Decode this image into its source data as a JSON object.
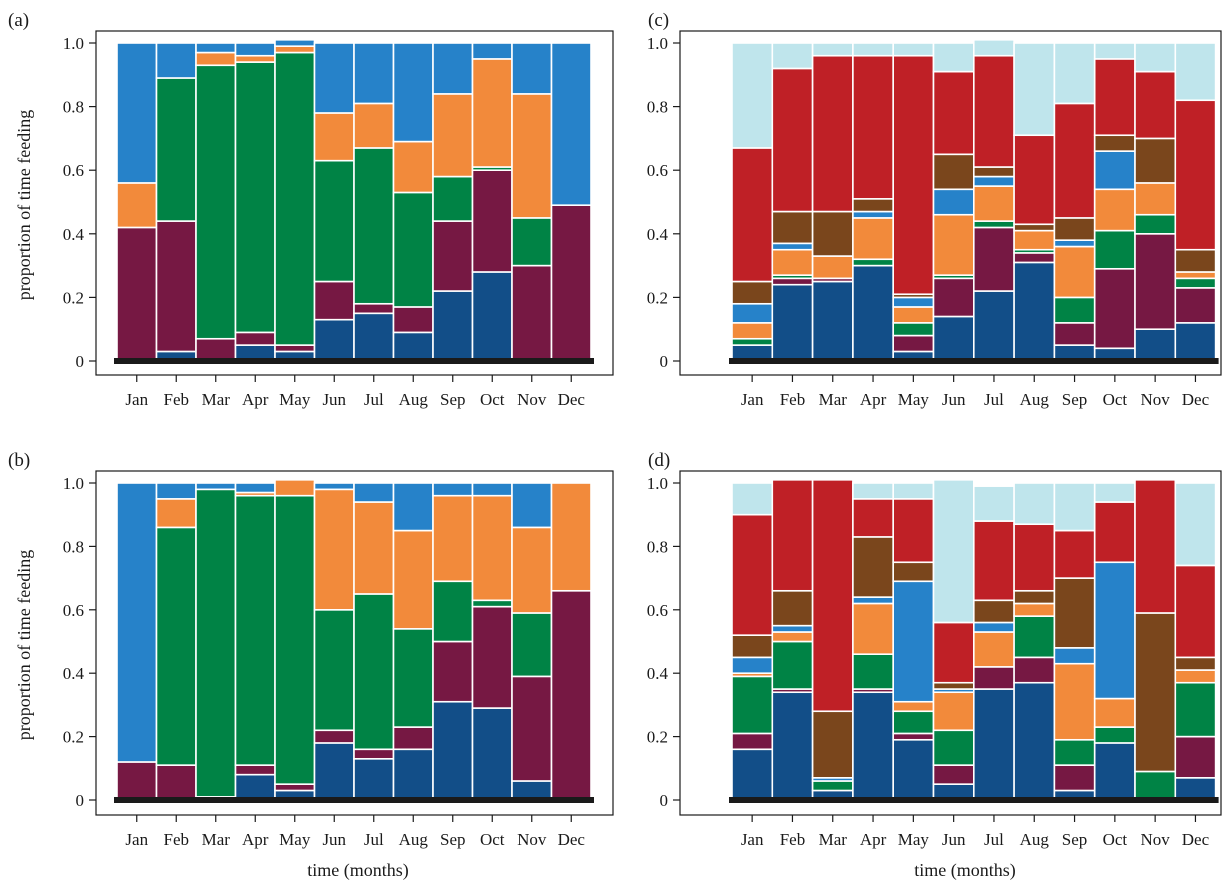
{
  "figure": {
    "ylabel": "proportion of time feeding",
    "xlabel": "time (months)",
    "months": [
      "Jan",
      "Feb",
      "Mar",
      "Apr",
      "May",
      "Jun",
      "Jul",
      "Aug",
      "Sep",
      "Oct",
      "Nov",
      "Dec"
    ],
    "ytick_labels": [
      "0",
      "0.2",
      "0.4",
      "0.6",
      "0.8",
      "1.0"
    ],
    "colors": {
      "navy": "#124e88",
      "maroon": "#761843",
      "green": "#008345",
      "orange": "#f28a3b",
      "blue": "#2682c9",
      "brown": "#7a461c",
      "red": "#bf2026",
      "lightblue": "#bfe5ec"
    }
  },
  "chart_data": [
    {
      "panel": "(a)",
      "type": "bar",
      "stacked": true,
      "categories": [
        "Jan",
        "Feb",
        "Mar",
        "Apr",
        "May",
        "Jun",
        "Jul",
        "Aug",
        "Sep",
        "Oct",
        "Nov",
        "Dec"
      ],
      "ylim": [
        0,
        1.0
      ],
      "ylabel": "proportion of time feeding",
      "xlabel": "",
      "series": [
        {
          "color": "navy",
          "values": [
            0,
            0.03,
            0,
            0.05,
            0.03,
            0.13,
            0.15,
            0.09,
            0.22,
            0.28,
            0,
            0
          ]
        },
        {
          "color": "maroon",
          "values": [
            0.42,
            0.41,
            0.07,
            0.04,
            0.02,
            0.12,
            0.03,
            0.08,
            0.22,
            0.32,
            0.3,
            0.49
          ]
        },
        {
          "color": "green",
          "values": [
            0,
            0.45,
            0.86,
            0.85,
            0.92,
            0.38,
            0.49,
            0.36,
            0.14,
            0.01,
            0.15,
            0
          ]
        },
        {
          "color": "orange",
          "values": [
            0.14,
            0,
            0.04,
            0.02,
            0.02,
            0.15,
            0.14,
            0.16,
            0.26,
            0.34,
            0.39,
            0
          ]
        },
        {
          "color": "blue",
          "values": [
            0.44,
            0.11,
            0.03,
            0.04,
            0.02,
            0.22,
            0.19,
            0.31,
            0.16,
            0.05,
            0.16,
            0.51
          ]
        }
      ]
    },
    {
      "panel": "(b)",
      "type": "bar",
      "stacked": true,
      "categories": [
        "Jan",
        "Feb",
        "Mar",
        "Apr",
        "May",
        "Jun",
        "Jul",
        "Aug",
        "Sep",
        "Oct",
        "Nov",
        "Dec"
      ],
      "ylim": [
        0,
        1.0
      ],
      "ylabel": "proportion of time feeding",
      "xlabel": "time (months)",
      "series": [
        {
          "color": "navy",
          "values": [
            0,
            0,
            0,
            0.08,
            0.03,
            0.18,
            0.13,
            0.16,
            0.31,
            0.29,
            0.06,
            0
          ]
        },
        {
          "color": "maroon",
          "values": [
            0.12,
            0.11,
            0.01,
            0.03,
            0.02,
            0.04,
            0.03,
            0.07,
            0.19,
            0.32,
            0.33,
            0.66
          ]
        },
        {
          "color": "green",
          "values": [
            0,
            0.75,
            0.97,
            0.85,
            0.91,
            0.38,
            0.49,
            0.31,
            0.19,
            0.02,
            0.2,
            0
          ]
        },
        {
          "color": "orange",
          "values": [
            0,
            0.09,
            0,
            0.01,
            0.05,
            0.38,
            0.29,
            0.31,
            0.27,
            0.33,
            0.27,
            0.34
          ]
        },
        {
          "color": "blue",
          "values": [
            0.88,
            0.05,
            0.02,
            0.03,
            0,
            0.02,
            0.06,
            0.15,
            0.04,
            0.04,
            0.14,
            0
          ]
        }
      ]
    },
    {
      "panel": "(c)",
      "type": "bar",
      "stacked": true,
      "categories": [
        "Jan",
        "Feb",
        "Mar",
        "Apr",
        "May",
        "Jun",
        "Jul",
        "Aug",
        "Sep",
        "Oct",
        "Nov",
        "Dec"
      ],
      "ylim": [
        0,
        1.0
      ],
      "ylabel": "",
      "xlabel": "",
      "series": [
        {
          "color": "navy",
          "values": [
            0.05,
            0.24,
            0.25,
            0.3,
            0.03,
            0.14,
            0.22,
            0.31,
            0.05,
            0.04,
            0.1,
            0.12
          ]
        },
        {
          "color": "maroon",
          "values": [
            0,
            0.02,
            0.01,
            0,
            0.05,
            0.12,
            0.2,
            0.03,
            0.07,
            0.25,
            0.3,
            0.11
          ]
        },
        {
          "color": "green",
          "values": [
            0.02,
            0.01,
            0,
            0.02,
            0.04,
            0.01,
            0.02,
            0.01,
            0.08,
            0.12,
            0.06,
            0.03
          ]
        },
        {
          "color": "orange",
          "values": [
            0.05,
            0.08,
            0.07,
            0.13,
            0.05,
            0.19,
            0.11,
            0.06,
            0.16,
            0.13,
            0.1,
            0.02
          ]
        },
        {
          "color": "blue",
          "values": [
            0.06,
            0.02,
            0,
            0.02,
            0.03,
            0.08,
            0.03,
            0,
            0.02,
            0.12,
            0,
            0
          ]
        },
        {
          "color": "brown",
          "values": [
            0.07,
            0.1,
            0.14,
            0.04,
            0.01,
            0.11,
            0.03,
            0.02,
            0.07,
            0.05,
            0.14,
            0.07
          ]
        },
        {
          "color": "red",
          "values": [
            0.42,
            0.45,
            0.49,
            0.45,
            0.75,
            0.26,
            0.35,
            0.28,
            0.36,
            0.24,
            0.21,
            0.47
          ]
        },
        {
          "color": "lightblue",
          "values": [
            0.33,
            0.08,
            0.04,
            0.04,
            0.04,
            0.09,
            0.05,
            0.29,
            0.19,
            0.05,
            0.09,
            0.18
          ]
        }
      ]
    },
    {
      "panel": "(d)",
      "type": "bar",
      "stacked": true,
      "categories": [
        "Jan",
        "Feb",
        "Mar",
        "Apr",
        "May",
        "Jun",
        "Jul",
        "Aug",
        "Sep",
        "Oct",
        "Nov",
        "Dec"
      ],
      "ylim": [
        0,
        1.0
      ],
      "ylabel": "",
      "xlabel": "time (months)",
      "series": [
        {
          "color": "navy",
          "values": [
            0.16,
            0.34,
            0.03,
            0.34,
            0.19,
            0.05,
            0.35,
            0.37,
            0.03,
            0.18,
            0,
            0.07
          ]
        },
        {
          "color": "maroon",
          "values": [
            0.05,
            0.01,
            0,
            0.01,
            0.02,
            0.06,
            0.07,
            0.08,
            0.08,
            0,
            0,
            0.13
          ]
        },
        {
          "color": "green",
          "values": [
            0.18,
            0.15,
            0.03,
            0.11,
            0.07,
            0.11,
            0,
            0.13,
            0.08,
            0.05,
            0.09,
            0.17
          ]
        },
        {
          "color": "orange",
          "values": [
            0.01,
            0.03,
            0,
            0.16,
            0.03,
            0.12,
            0.11,
            0.04,
            0.24,
            0.09,
            0,
            0.04
          ]
        },
        {
          "color": "blue",
          "values": [
            0.05,
            0.02,
            0.01,
            0.02,
            0.38,
            0.01,
            0.03,
            0,
            0.05,
            0.43,
            0,
            0
          ]
        },
        {
          "color": "brown",
          "values": [
            0.07,
            0.11,
            0.21,
            0.19,
            0.06,
            0.02,
            0.07,
            0.04,
            0.22,
            0,
            0.5,
            0.04
          ]
        },
        {
          "color": "red",
          "values": [
            0.38,
            0.35,
            0.73,
            0.12,
            0.2,
            0.19,
            0.25,
            0.21,
            0.15,
            0.19,
            0.42,
            0.29
          ]
        },
        {
          "color": "lightblue",
          "values": [
            0.1,
            0,
            0,
            0.05,
            0.05,
            0.45,
            0.11,
            0.13,
            0.15,
            0.06,
            0,
            0.26
          ]
        }
      ]
    }
  ]
}
